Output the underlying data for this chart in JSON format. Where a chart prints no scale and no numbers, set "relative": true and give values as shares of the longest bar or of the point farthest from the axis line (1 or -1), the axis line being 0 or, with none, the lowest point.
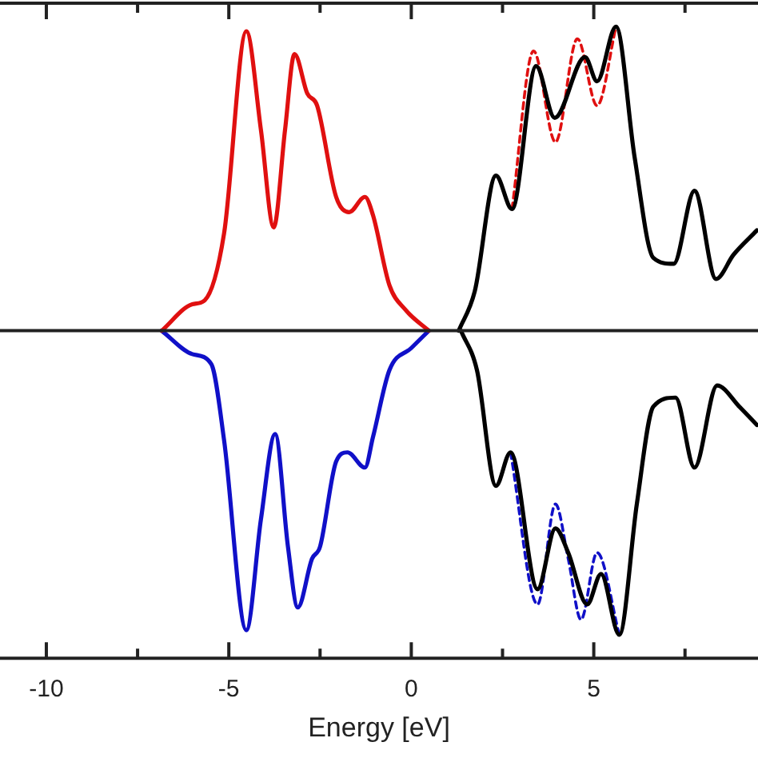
{
  "chart_data": {
    "type": "line",
    "xlabel": "Energy [eV]",
    "xlim": [
      -11.27,
      9.5
    ],
    "xticks": [
      -10,
      {
        "value": -7.5,
        "label": null
      },
      -5,
      {
        "value": -2.5,
        "label": null
      },
      0,
      {
        "value": 2.5,
        "label": null
      },
      5,
      {
        "value": 7.5,
        "label": null
      }
    ],
    "relative": true,
    "marker": "none",
    "series": [
      {
        "color": "#e01010",
        "line_style": "solid",
        "x": [
          -6.84,
          -6.0,
          -5.66,
          -5.13,
          -4.52,
          -4.12,
          -3.77,
          -3.46,
          -3.2,
          -2.85,
          -2.58,
          -2.06,
          -1.7,
          -1.27,
          -1.05,
          -0.6,
          -0.17,
          0.48
        ],
        "values": [
          0,
          0.087,
          0.1,
          0.32,
          0.985,
          0.66,
          0.34,
          0.66,
          0.91,
          0.78,
          0.74,
          0.44,
          0.39,
          0.44,
          0.38,
          0.15,
          0.07,
          0
        ]
      },
      {
        "color": "#000000",
        "line_style": "solid",
        "x": [
          1.3,
          1.74,
          2.32,
          2.76,
          3.42,
          3.93,
          4.76,
          5.09,
          5.61,
          6.12,
          6.63,
          7.19,
          7.76,
          8.35,
          8.83,
          9.47
        ],
        "values": [
          0,
          0.13,
          0.51,
          0.4,
          0.87,
          0.7,
          0.9,
          0.82,
          1.0,
          0.57,
          0.24,
          0.22,
          0.46,
          0.17,
          0.25,
          0.33
        ]
      },
      {
        "color": "#e01010",
        "line_style": "dashed",
        "x": [
          2.76,
          3.35,
          3.95,
          4.55,
          5.09,
          5.61
        ],
        "values": [
          0.4,
          0.92,
          0.62,
          0.96,
          0.74,
          1.0
        ]
      },
      {
        "color": "#1010c8",
        "line_style": "solid",
        "x": [
          -6.84,
          -6.0,
          -5.48,
          -5.13,
          -4.52,
          -4.12,
          -3.73,
          -3.38,
          -3.11,
          -2.72,
          -2.5,
          -2.06,
          -1.75,
          -1.27,
          -1.05,
          -0.6,
          0,
          0.48
        ],
        "values": [
          0,
          -0.077,
          -0.11,
          -0.36,
          -0.985,
          -0.62,
          -0.34,
          -0.71,
          -0.91,
          -0.75,
          -0.71,
          -0.43,
          -0.4,
          -0.45,
          -0.35,
          -0.13,
          -0.057,
          0
        ]
      },
      {
        "color": "#000000",
        "line_style": "solid",
        "x": [
          1.36,
          1.8,
          2.32,
          2.72,
          3.46,
          3.95,
          4.3,
          4.82,
          5.2,
          5.7,
          6.18,
          6.63,
          7.24,
          7.76,
          8.38,
          8.99,
          9.47
        ],
        "values": [
          0,
          -0.13,
          -0.51,
          -0.4,
          -0.85,
          -0.65,
          -0.73,
          -0.9,
          -0.8,
          -1.0,
          -0.57,
          -0.25,
          -0.22,
          -0.45,
          -0.18,
          -0.25,
          -0.31
        ]
      },
      {
        "color": "#1010c8",
        "line_style": "dashed",
        "x": [
          2.72,
          3.46,
          3.95,
          4.3,
          4.65,
          5.09,
          5.7
        ],
        "values": [
          -0.4,
          -0.9,
          -0.57,
          -0.75,
          -0.95,
          -0.73,
          -1.0
        ]
      }
    ]
  }
}
